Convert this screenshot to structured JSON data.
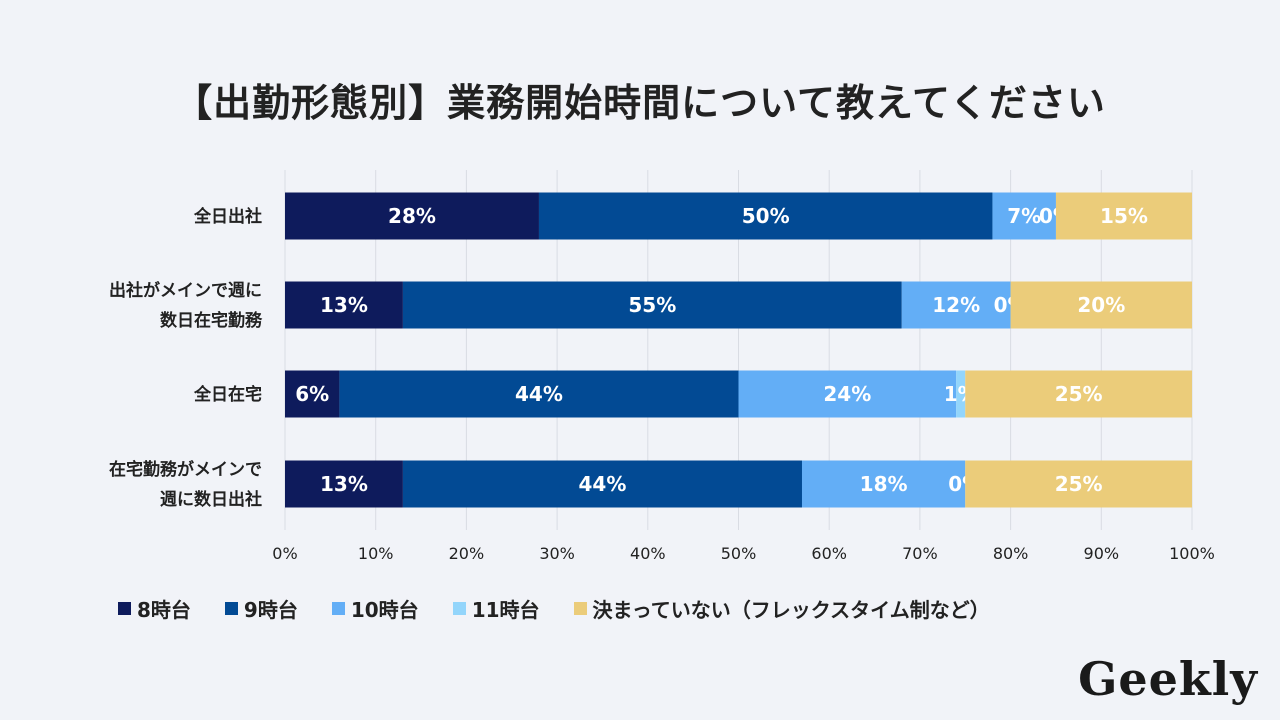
{
  "chart_data": {
    "type": "bar",
    "orientation": "horizontal-stacked-100",
    "title": "【出勤形態別】業務開始時間について教えてください",
    "categories": [
      [
        "全日出社"
      ],
      [
        "出社がメインで週に",
        "数日在宅勤務"
      ],
      [
        "全日在宅"
      ],
      [
        "在宅勤務がメインで",
        "週に数日出社"
      ]
    ],
    "series": [
      {
        "name": "8時台",
        "color": "#0e1b5c",
        "values": [
          28,
          13,
          6,
          13
        ]
      },
      {
        "name": "9時台",
        "color": "#024a94",
        "values": [
          50,
          55,
          44,
          44
        ]
      },
      {
        "name": "10時台",
        "color": "#63aef6",
        "values": [
          7,
          12,
          24,
          18
        ]
      },
      {
        "name": "11時台",
        "color": "#93d5fb",
        "values": [
          0,
          0,
          1,
          0
        ]
      },
      {
        "name": "決まっていない（フレックスタイム制など）",
        "color": "#ebcc7a",
        "values": [
          15,
          20,
          25,
          25
        ]
      }
    ],
    "xlim": [
      0,
      100
    ],
    "xticks": [
      "0%",
      "10%",
      "20%",
      "30%",
      "40%",
      "50%",
      "60%",
      "70%",
      "80%",
      "90%",
      "100%"
    ],
    "legend_position": "bottom"
  },
  "brand": {
    "logo_text": "Geekly"
  }
}
